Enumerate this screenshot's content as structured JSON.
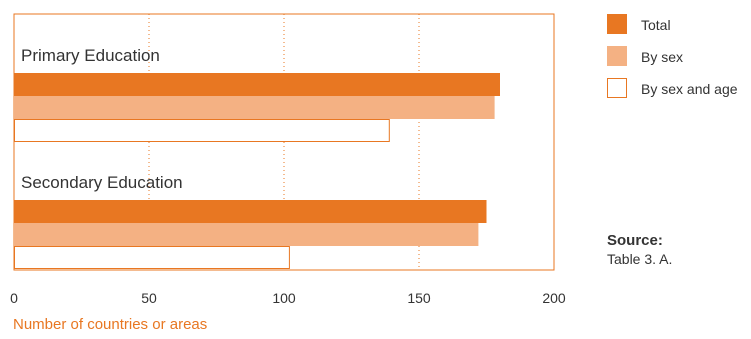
{
  "chart_data": {
    "type": "bar",
    "orientation": "horizontal",
    "categories": [
      "Primary Education",
      "Secondary Education"
    ],
    "series": [
      {
        "name": "Total",
        "values": [
          180,
          175
        ],
        "color": "#E87722"
      },
      {
        "name": "By sex",
        "values": [
          178,
          172
        ],
        "color": "#F4B183"
      },
      {
        "name": "By sex and age",
        "values": [
          139,
          102
        ],
        "color": "#FFFFFF",
        "stroke": "#E87722"
      }
    ],
    "xticks": [
      "0",
      "50",
      "100",
      "150",
      "200"
    ],
    "xlim": [
      0,
      200
    ],
    "xlabel": "Number of countries or areas",
    "grid": true,
    "legend": "right"
  },
  "source": {
    "title": "Source:",
    "text": "Table 3. A."
  }
}
